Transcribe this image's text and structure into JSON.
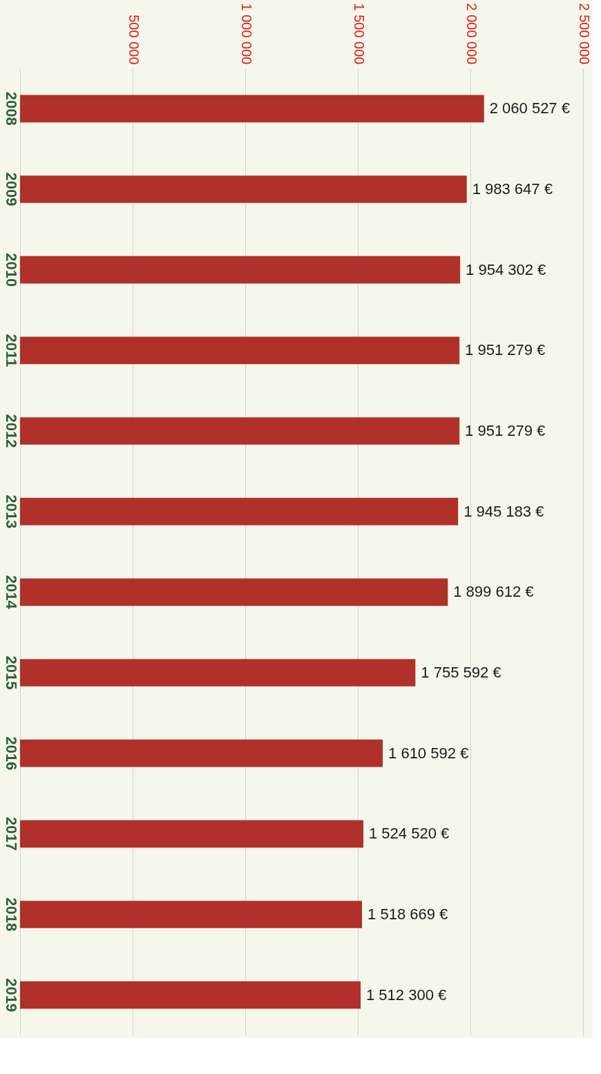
{
  "chart_data": {
    "type": "bar",
    "orientation": "horizontal",
    "categories": [
      "2008",
      "2009",
      "2010",
      "2011",
      "2012",
      "2013",
      "2014",
      "2015",
      "2016",
      "2017",
      "2018",
      "2019"
    ],
    "values": [
      2060527,
      1983647,
      1954302,
      1951279,
      1951279,
      1945183,
      1899612,
      1755592,
      1610592,
      1524520,
      1518669,
      1512300
    ],
    "value_labels": [
      "2 060 527 €",
      "1 983 647 €",
      "1 954 302 €",
      "1 951 279 €",
      "1 951 279 €",
      "1 945 183 €",
      "1 899 612 €",
      "1 755 592 €",
      "1 610 592 €",
      "1 524 520 €",
      "1 518 669 €",
      "1 512 300 €"
    ],
    "color": "#b0302a",
    "xlim": [
      0,
      2500000
    ],
    "xticks": [
      {
        "value": 0,
        "label": null
      },
      {
        "value": 500000,
        "label": "500 000"
      },
      {
        "value": 1000000,
        "label": "1 000 000"
      },
      {
        "value": 1500000,
        "label": "1 500 000"
      },
      {
        "value": 2000000,
        "label": "2 000 000"
      },
      {
        "value": 2500000,
        "label": "2 500 000"
      }
    ],
    "grid": "x"
  }
}
